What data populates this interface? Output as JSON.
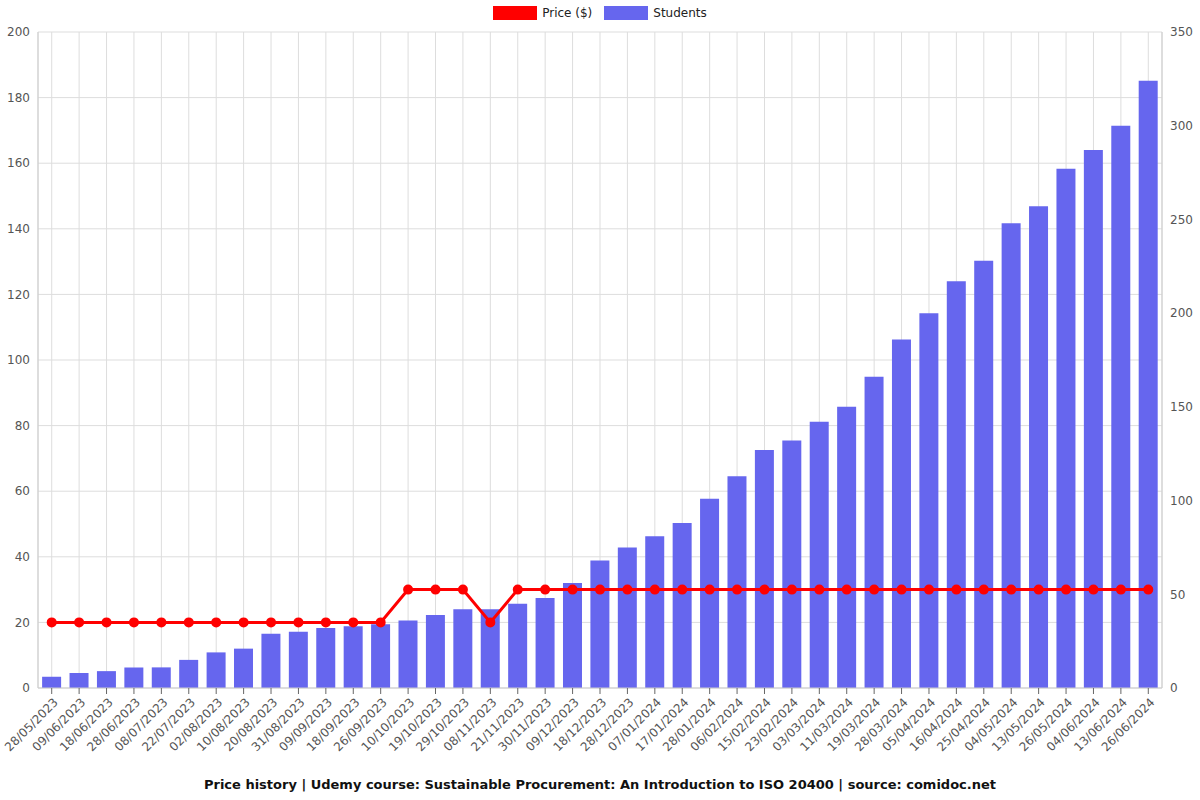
{
  "chart_data": {
    "type": "bar",
    "title": "Price history | Udemy course: Sustainable Procurement: An Introduction to ISO 20400 | source: comidoc.net",
    "categories": [
      "28/05/2023",
      "09/06/2023",
      "18/06/2023",
      "28/06/2023",
      "08/07/2023",
      "22/07/2023",
      "02/08/2023",
      "10/08/2023",
      "20/08/2023",
      "31/08/2023",
      "09/09/2023",
      "18/09/2023",
      "26/09/2023",
      "10/10/2023",
      "19/10/2023",
      "29/10/2023",
      "08/11/2023",
      "21/11/2023",
      "30/11/2023",
      "09/12/2023",
      "18/12/2023",
      "28/12/2023",
      "07/01/2024",
      "17/01/2024",
      "28/01/2024",
      "06/02/2024",
      "15/02/2024",
      "23/02/2024",
      "03/03/2024",
      "11/03/2024",
      "19/03/2024",
      "28/03/2024",
      "05/04/2024",
      "16/04/2024",
      "25/04/2024",
      "04/05/2024",
      "13/05/2024",
      "26/05/2024",
      "04/06/2024",
      "13/06/2024",
      "26/06/2024"
    ],
    "series": [
      {
        "name": "Price ($)",
        "color": "#ff0000",
        "type": "line",
        "marker": "circle",
        "values": [
          20,
          20,
          20,
          20,
          20,
          20,
          20,
          20,
          20,
          20,
          20,
          20,
          20,
          30,
          30,
          30,
          20,
          30,
          30,
          30,
          30,
          30,
          30,
          30,
          30,
          30,
          30,
          30,
          30,
          30,
          30,
          30,
          30,
          30,
          30,
          30,
          30,
          30,
          30,
          30,
          30
        ]
      },
      {
        "name": "Students",
        "color": "#6666ee",
        "type": "bar",
        "axis": "y2",
        "values": [
          6,
          8,
          9,
          11,
          11,
          15,
          19,
          21,
          29,
          30,
          32,
          33,
          34,
          36,
          39,
          42,
          42,
          45,
          48,
          56,
          68,
          75,
          81,
          88,
          101,
          113,
          127,
          132,
          142,
          150,
          166,
          186,
          200,
          217,
          228,
          248,
          257,
          277,
          287,
          300,
          324
        ]
      }
    ],
    "ylim": [
      0,
      200
    ],
    "yticks": [
      0,
      20,
      40,
      60,
      80,
      100,
      120,
      140,
      160,
      180,
      200
    ],
    "y2lim": [
      0,
      350
    ],
    "y2ticks": [
      0,
      50,
      100,
      150,
      200,
      250,
      300,
      350
    ],
    "grid": true,
    "legend": "top"
  }
}
